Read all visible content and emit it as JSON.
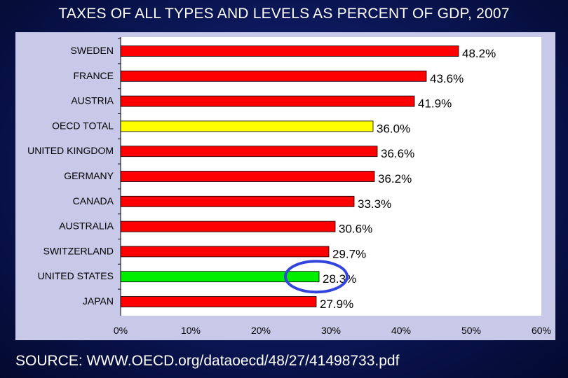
{
  "title": "TAXES OF ALL TYPES AND LEVELS AS PERCENT OF GDP, 2007",
  "source": "SOURCE: WWW.OECD.org/dataoecd/48/27/41498733.pdf",
  "colors": {
    "default_bar": "#ff0000",
    "oecd_total_bar": "#ffff00",
    "united_states_bar": "#00ee00",
    "highlight_circle": "#3344dd"
  },
  "chart_data": {
    "type": "bar",
    "orientation": "horizontal",
    "categories": [
      "SWEDEN",
      "FRANCE",
      "AUSTRIA",
      "OECD TOTAL",
      "UNITED KINGDOM",
      "GERMANY",
      "CANADA",
      "AUSTRALIA",
      "SWITZERLAND",
      "UNITED STATES",
      "JAPAN"
    ],
    "values": [
      48.2,
      43.6,
      41.9,
      36.0,
      36.6,
      36.2,
      33.3,
      30.6,
      29.7,
      28.3,
      27.9
    ],
    "data_labels": [
      "48.2%",
      "43.6%",
      "41.9%",
      "36.0%",
      "36.6%",
      "36.2%",
      "33.3%",
      "30.6%",
      "29.7%",
      "28.3%",
      "27.9%"
    ],
    "bar_colors": [
      "#ff0000",
      "#ff0000",
      "#ff0000",
      "#ffff00",
      "#ff0000",
      "#ff0000",
      "#ff0000",
      "#ff0000",
      "#ff0000",
      "#00ee00",
      "#ff0000"
    ],
    "xlim": [
      0,
      60
    ],
    "x_ticks": [
      0,
      10,
      20,
      30,
      40,
      50,
      60
    ],
    "x_tick_labels": [
      "0%",
      "10%",
      "20%",
      "30%",
      "40%",
      "50%",
      "60%"
    ],
    "highlight": "UNITED STATES",
    "grid": false,
    "title": "TAXES OF ALL TYPES AND LEVELS AS PERCENT OF GDP, 2007"
  }
}
